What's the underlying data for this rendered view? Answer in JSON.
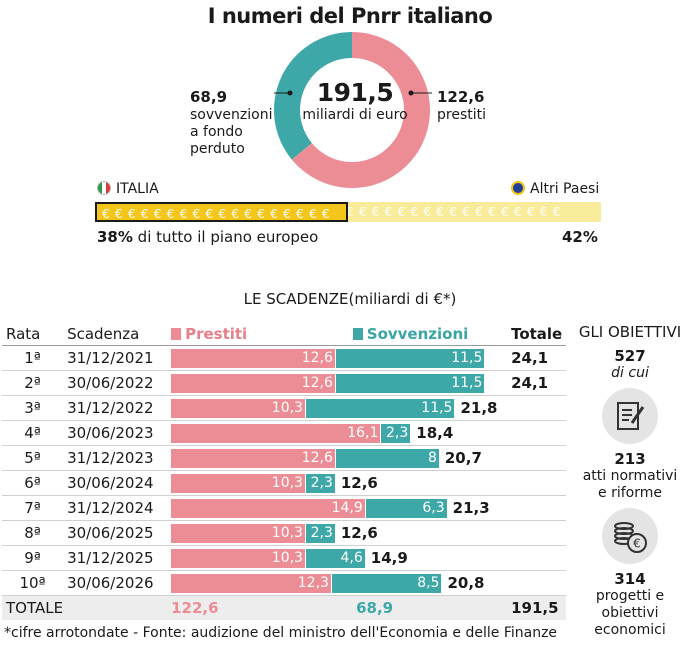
{
  "title": "I numeri del Pnrr italiano",
  "donut": {
    "total": "191,5",
    "unit": "miliardi di euro",
    "left_value": "68,9",
    "left_lines": [
      "sovvenzioni",
      "a fondo",
      "perduto"
    ],
    "right_value": "122,6",
    "right_lines": [
      "prestiti"
    ]
  },
  "share": {
    "italia_label": "ITALIA",
    "others_label": "Altri Paesi",
    "italia_pct_bold": "38%",
    "italia_pct_text": " di tutto il piano europeo",
    "others_pct": "42%",
    "italia_fraction": 0.5
  },
  "scadenze_title": "LE SCADENZE(miliardi di €*)",
  "table": {
    "headers": {
      "rata": "Rata",
      "scadenza": "Scadenza",
      "prestiti": "Prestiti",
      "sovvenzioni": "Sovvenzioni",
      "totale": "Totale"
    },
    "total_row": {
      "label": "TOTALE",
      "prestiti": "122,6",
      "sovvenzioni": "68,9",
      "totale": "191,5"
    }
  },
  "obiettivi": {
    "title": "GLI OBIETTIVI",
    "count": "527",
    "count_sub": "di cui",
    "atti_count": "213",
    "atti_label": "atti normativi e riforme",
    "progetti_count": "314",
    "progetti_label": "progetti e obiettivi economici"
  },
  "footnote": "*cifre arrotondate - Fonte: audizione del ministro dell'Economia e delle Finanze",
  "colors": {
    "prestiti": "#ec8d96",
    "sovvenzioni": "#3ea8a8",
    "euro_dark": "#f4c61a",
    "euro_light": "#f8ec9a"
  },
  "chart_data": {
    "type": "bar",
    "title": "LE SCADENZE(miliardi di €*)",
    "categories": [
      "1ª",
      "2ª",
      "3ª",
      "4ª",
      "5ª",
      "6ª",
      "7ª",
      "8ª",
      "9ª",
      "10ª"
    ],
    "dates": [
      "31/12/2021",
      "30/06/2022",
      "31/12/2022",
      "30/06/2023",
      "31/12/2023",
      "30/06/2024",
      "31/12/2024",
      "30/06/2025",
      "31/12/2025",
      "30/06/2026"
    ],
    "series": [
      {
        "name": "Prestiti",
        "values": [
          12.6,
          12.6,
          10.3,
          16.1,
          12.6,
          10.3,
          14.9,
          10.3,
          10.3,
          12.3
        ],
        "labels": [
          "12,6",
          "12,6",
          "10,3",
          "16,1",
          "12,6",
          "10,3",
          "14,9",
          "10,3",
          "10,3",
          "12,3"
        ]
      },
      {
        "name": "Sovvenzioni",
        "values": [
          11.5,
          11.5,
          11.5,
          2.3,
          8,
          2.3,
          6.3,
          2.3,
          4.6,
          8.5
        ],
        "labels": [
          "11,5",
          "11,5",
          "11,5",
          "2,3",
          "8",
          "2,3",
          "6,3",
          "2,3",
          "4,6",
          "8,5"
        ]
      }
    ],
    "totals": [
      "24,1",
      "24,1",
      "21,8",
      "18,4",
      "20,7",
      "12,6",
      "21,3",
      "12,6",
      "14,9",
      "20,8"
    ],
    "stacked": true,
    "orientation": "horizontal",
    "pie": {
      "labels": [
        "sovvenzioni a fondo perduto",
        "prestiti"
      ],
      "values": [
        68.9,
        122.6
      ]
    }
  }
}
